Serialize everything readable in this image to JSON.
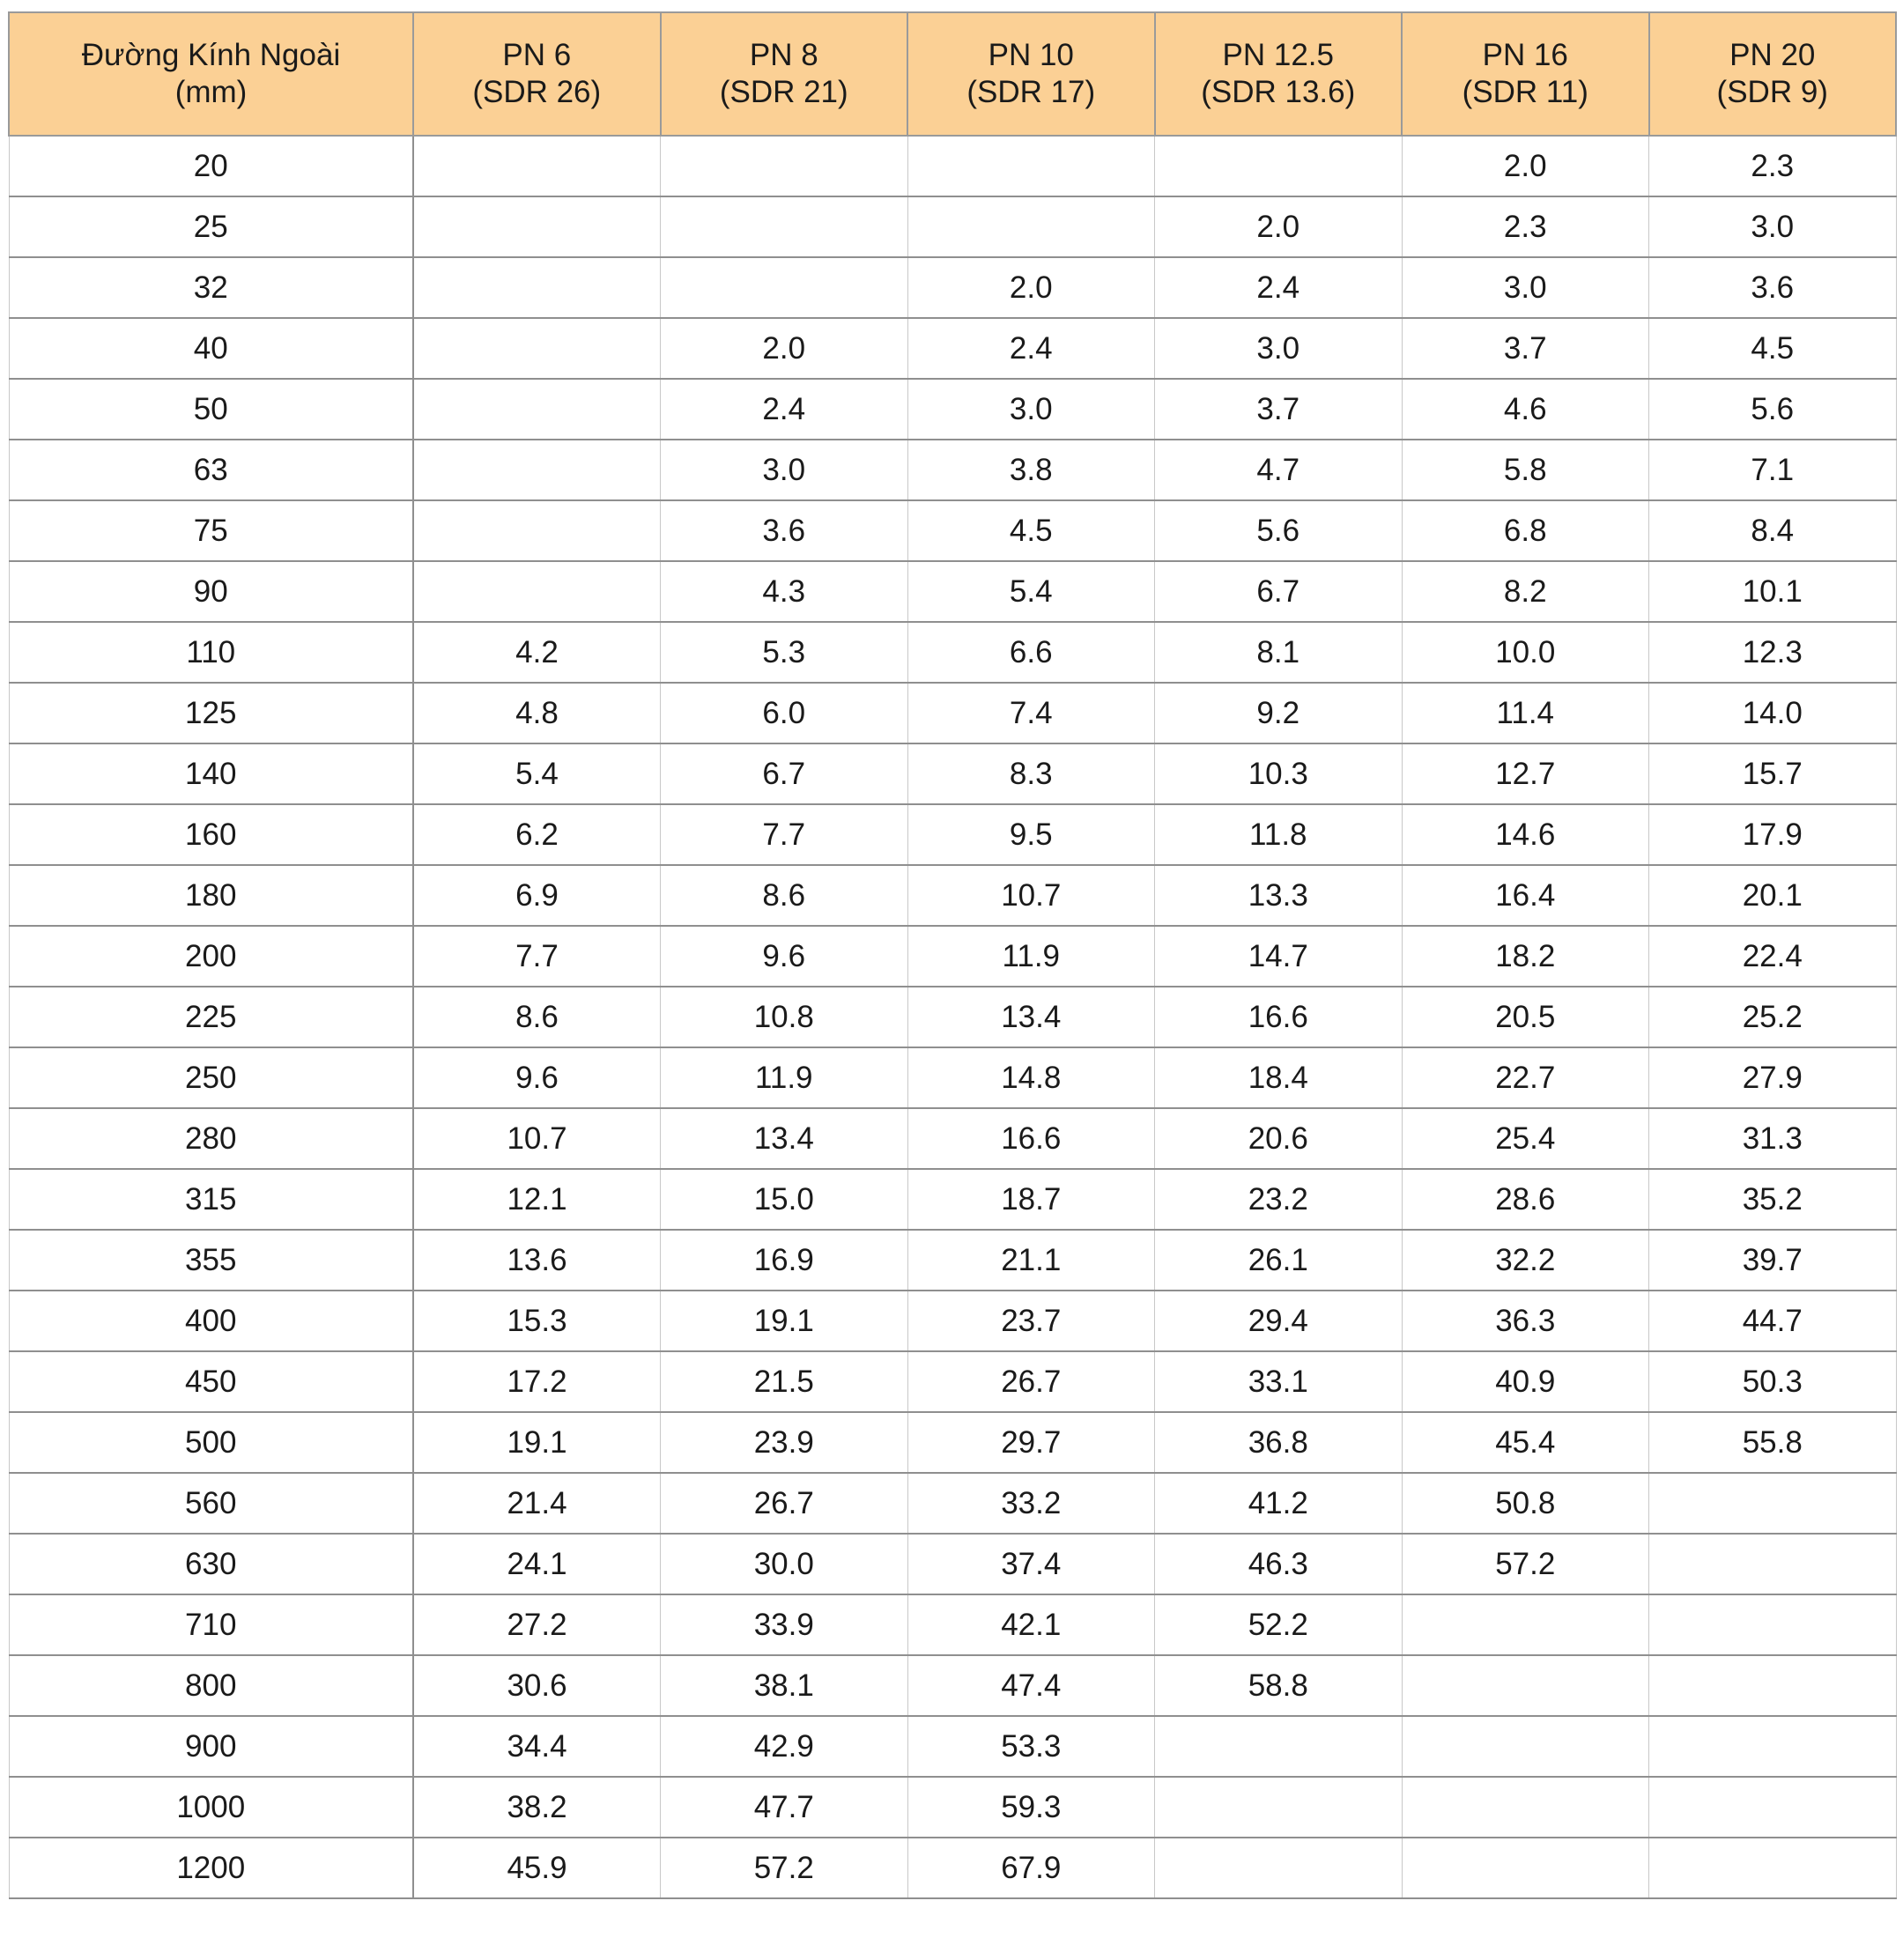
{
  "table": {
    "headers": [
      {
        "line1": "Đường Kính Ngoài",
        "line2": "(mm)"
      },
      {
        "line1": "PN 6",
        "line2": "(SDR 26)"
      },
      {
        "line1": "PN 8",
        "line2": "(SDR 21)"
      },
      {
        "line1": "PN 10",
        "line2": "(SDR 17)"
      },
      {
        "line1": "PN 12.5",
        "line2": "(SDR 13.6)"
      },
      {
        "line1": "PN 16",
        "line2": "(SDR 11)"
      },
      {
        "line1": "PN 20",
        "line2": "(SDR 9)"
      }
    ],
    "rows": [
      [
        "20",
        "",
        "",
        "",
        "",
        "2.0",
        "2.3"
      ],
      [
        "25",
        "",
        "",
        "",
        "2.0",
        "2.3",
        "3.0"
      ],
      [
        "32",
        "",
        "",
        "2.0",
        "2.4",
        "3.0",
        "3.6"
      ],
      [
        "40",
        "",
        "2.0",
        "2.4",
        "3.0",
        "3.7",
        "4.5"
      ],
      [
        "50",
        "",
        "2.4",
        "3.0",
        "3.7",
        "4.6",
        "5.6"
      ],
      [
        "63",
        "",
        "3.0",
        "3.8",
        "4.7",
        "5.8",
        "7.1"
      ],
      [
        "75",
        "",
        "3.6",
        "4.5",
        "5.6",
        "6.8",
        "8.4"
      ],
      [
        "90",
        "",
        "4.3",
        "5.4",
        "6.7",
        "8.2",
        "10.1"
      ],
      [
        "110",
        "4.2",
        "5.3",
        "6.6",
        "8.1",
        "10.0",
        "12.3"
      ],
      [
        "125",
        "4.8",
        "6.0",
        "7.4",
        "9.2",
        "11.4",
        "14.0"
      ],
      [
        "140",
        "5.4",
        "6.7",
        "8.3",
        "10.3",
        "12.7",
        "15.7"
      ],
      [
        "160",
        "6.2",
        "7.7",
        "9.5",
        "11.8",
        "14.6",
        "17.9"
      ],
      [
        "180",
        "6.9",
        "8.6",
        "10.7",
        "13.3",
        "16.4",
        "20.1"
      ],
      [
        "200",
        "7.7",
        "9.6",
        "11.9",
        "14.7",
        "18.2",
        "22.4"
      ],
      [
        "225",
        "8.6",
        "10.8",
        "13.4",
        "16.6",
        "20.5",
        "25.2"
      ],
      [
        "250",
        "9.6",
        "11.9",
        "14.8",
        "18.4",
        "22.7",
        "27.9"
      ],
      [
        "280",
        "10.7",
        "13.4",
        "16.6",
        "20.6",
        "25.4",
        "31.3"
      ],
      [
        "315",
        "12.1",
        "15.0",
        "18.7",
        "23.2",
        "28.6",
        "35.2"
      ],
      [
        "355",
        "13.6",
        "16.9",
        "21.1",
        "26.1",
        "32.2",
        "39.7"
      ],
      [
        "400",
        "15.3",
        "19.1",
        "23.7",
        "29.4",
        "36.3",
        "44.7"
      ],
      [
        "450",
        "17.2",
        "21.5",
        "26.7",
        "33.1",
        "40.9",
        "50.3"
      ],
      [
        "500",
        "19.1",
        "23.9",
        "29.7",
        "36.8",
        "45.4",
        "55.8"
      ],
      [
        "560",
        "21.4",
        "26.7",
        "33.2",
        "41.2",
        "50.8",
        ""
      ],
      [
        "630",
        "24.1",
        "30.0",
        "37.4",
        "46.3",
        "57.2",
        ""
      ],
      [
        "710",
        "27.2",
        "33.9",
        "42.1",
        "52.2",
        "",
        ""
      ],
      [
        "800",
        "30.6",
        "38.1",
        "47.4",
        "58.8",
        "",
        ""
      ],
      [
        "900",
        "34.4",
        "42.9",
        "53.3",
        "",
        "",
        ""
      ],
      [
        "1000",
        "38.2",
        "47.7",
        "59.3",
        "",
        "",
        ""
      ],
      [
        "1200",
        "45.9",
        "57.2",
        "67.9",
        "",
        "",
        ""
      ]
    ]
  },
  "colors": {
    "header_background": "#fbd095",
    "grid_line": "#c8c8c8",
    "text": "#1a1a1a"
  }
}
